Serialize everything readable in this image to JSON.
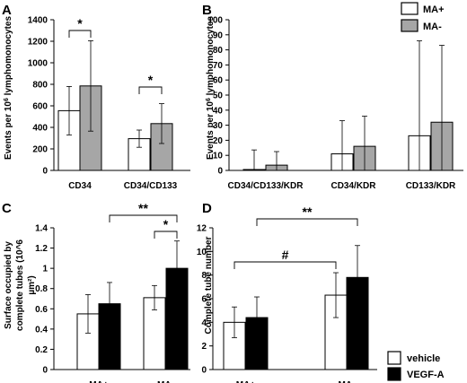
{
  "colors": {
    "white": "#ffffff",
    "gray": "#a6a6a6",
    "black": "#000000",
    "axis": "#000000"
  },
  "legend_top": {
    "entries": [
      "MA+",
      "MA-"
    ],
    "colors": [
      "#ffffff",
      "#a6a6a6"
    ]
  },
  "legend_bottom": {
    "entries": [
      "vehicle",
      "VEGF-A"
    ],
    "colors": [
      "#ffffff",
      "#000000"
    ]
  },
  "chart_data": [
    {
      "panel": "A",
      "type": "bar",
      "ylabel": "Events per 10^6 lymphomonocytes",
      "ylim": [
        0,
        1400
      ],
      "yticks": [
        "0",
        "200",
        "400",
        "600",
        "800",
        "1000",
        "1200",
        "1400"
      ],
      "categories": [
        "CD34",
        "CD34/CD133"
      ],
      "series": [
        {
          "name": "MA+",
          "color": "#ffffff",
          "values": [
            555,
            295
          ],
          "err": [
            225,
            80
          ]
        },
        {
          "name": "MA-",
          "color": "#a6a6a6",
          "values": [
            785,
            435
          ],
          "err": [
            420,
            185
          ]
        }
      ],
      "annotations": [
        "*",
        "*"
      ]
    },
    {
      "panel": "B",
      "type": "bar",
      "ylabel": "Events per 10^6 lymphomonocytes",
      "ylim": [
        0,
        100
      ],
      "yticks": [
        "0",
        "10",
        "20",
        "30",
        "40",
        "50",
        "60",
        "70",
        "80",
        "90",
        "100"
      ],
      "categories": [
        "CD34/CD133/KDR",
        "CD34/KDR",
        "CD133/KDR"
      ],
      "series": [
        {
          "name": "MA+",
          "color": "#ffffff",
          "values": [
            0.6,
            11,
            23
          ],
          "err": [
            13,
            22,
            63
          ]
        },
        {
          "name": "MA-",
          "color": "#a6a6a6",
          "values": [
            3.5,
            16,
            32
          ],
          "err": [
            9,
            20,
            51
          ]
        }
      ]
    },
    {
      "panel": "C",
      "type": "bar",
      "ylabel": "Surface occupied by complete tubes (10^6 µm²)",
      "ylim": [
        0,
        1.4
      ],
      "yticks": [
        "0",
        "0.2",
        "0.4",
        "0.6",
        "0.8",
        "1",
        "1.2",
        "1.4"
      ],
      "categories": [
        "MA+",
        "MA-"
      ],
      "series": [
        {
          "name": "vehicle",
          "color": "#ffffff",
          "values": [
            0.55,
            0.71
          ],
          "err": [
            0.19,
            0.12
          ]
        },
        {
          "name": "VEGF-A",
          "color": "#000000",
          "values": [
            0.65,
            1.0
          ],
          "err": [
            0.21,
            0.27
          ]
        }
      ],
      "annotations": [
        "**",
        "*"
      ]
    },
    {
      "panel": "D",
      "type": "bar",
      "ylabel": "Complete tube number",
      "ylim": [
        0,
        12
      ],
      "yticks": [
        "0",
        "2",
        "4",
        "6",
        "8",
        "10",
        "12"
      ],
      "categories": [
        "MA+",
        "MA-"
      ],
      "series": [
        {
          "name": "vehicle",
          "color": "#ffffff",
          "values": [
            4.0,
            6.3
          ],
          "err": [
            1.3,
            1.9
          ]
        },
        {
          "name": "VEGF-A",
          "color": "#000000",
          "values": [
            4.4,
            7.8
          ],
          "err": [
            1.75,
            2.7
          ]
        }
      ],
      "annotations": [
        "**",
        "#"
      ]
    }
  ]
}
